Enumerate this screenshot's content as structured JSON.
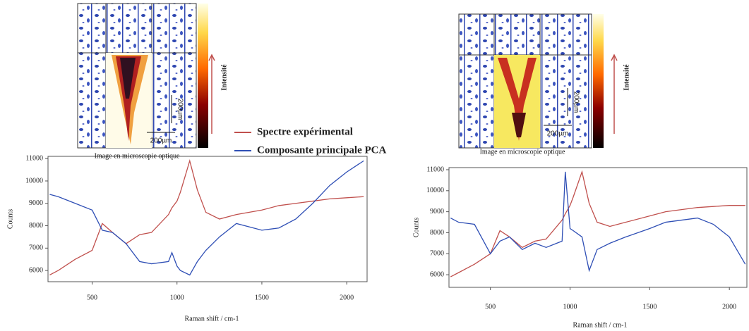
{
  "chart_data": [
    {
      "type": "line",
      "image_caption": "Image en microscopie optique",
      "colorbar_label": "Intensité",
      "scale_bar_labels": [
        "200µm",
        "200µm"
      ],
      "xlabel": "Raman shift / cm-1",
      "ylabel": "Counts",
      "x": [
        250,
        300,
        400,
        500,
        560,
        620,
        700,
        780,
        850,
        950,
        970,
        1000,
        1020,
        1075,
        1120,
        1170,
        1250,
        1350,
        1500,
        1600,
        1700,
        1800,
        1900,
        2000,
        2100
      ],
      "series": [
        {
          "name": "Spectre expérimental",
          "color": "#c0504d",
          "values": [
            5800,
            6000,
            6500,
            6900,
            8100,
            7700,
            7200,
            7600,
            7700,
            8500,
            8800,
            9100,
            9500,
            10900,
            9600,
            8600,
            8300,
            8500,
            8700,
            8900,
            9000,
            9100,
            9200,
            9250,
            9300
          ]
        },
        {
          "name": "Composante principale PCA",
          "color": "#2f4fb5",
          "values": [
            9400,
            9300,
            9000,
            8700,
            7800,
            7700,
            7200,
            6400,
            6300,
            6400,
            6800,
            6200,
            6000,
            5800,
            6400,
            6900,
            7500,
            8100,
            7800,
            7900,
            8300,
            9000,
            9800,
            10400,
            10900
          ]
        }
      ],
      "xlim": [
        240,
        2120
      ],
      "xticks": [
        500,
        1000,
        1500,
        2000
      ],
      "ylim": [
        5500,
        11100
      ],
      "yticks": [
        6000,
        7000,
        8000,
        9000,
        10000,
        11000
      ]
    },
    {
      "type": "line",
      "image_caption": "Image en microscopie optique",
      "colorbar_label": "Intensité",
      "scale_bar_labels": [
        "200µm",
        "200µm"
      ],
      "xlabel": "Raman shift / cm-1",
      "ylabel": "Counts",
      "x": [
        250,
        300,
        400,
        500,
        560,
        620,
        700,
        780,
        850,
        950,
        970,
        1000,
        1020,
        1075,
        1120,
        1170,
        1250,
        1350,
        1500,
        1600,
        1700,
        1800,
        1900,
        2000,
        2100
      ],
      "series": [
        {
          "color": "#c0504d",
          "values": [
            5900,
            6100,
            6500,
            7000,
            8100,
            7800,
            7300,
            7600,
            7700,
            8600,
            8900,
            9300,
            9700,
            10900,
            9400,
            8500,
            8300,
            8500,
            8800,
            9000,
            9100,
            9200,
            9250,
            9300,
            9300
          ]
        },
        {
          "color": "#2f4fb5",
          "values": [
            8700,
            8500,
            8400,
            7000,
            7600,
            7800,
            7200,
            7500,
            7300,
            7600,
            10900,
            8200,
            8100,
            7800,
            6200,
            7200,
            7500,
            7800,
            8200,
            8500,
            8600,
            8700,
            8400,
            7800,
            6500
          ]
        }
      ],
      "xlim": [
        240,
        2110
      ],
      "xticks": [
        500,
        1000,
        1500,
        2000
      ],
      "ylim": [
        5400,
        11100
      ],
      "yticks": [
        6000,
        7000,
        8000,
        9000,
        10000,
        11000
      ]
    }
  ]
}
